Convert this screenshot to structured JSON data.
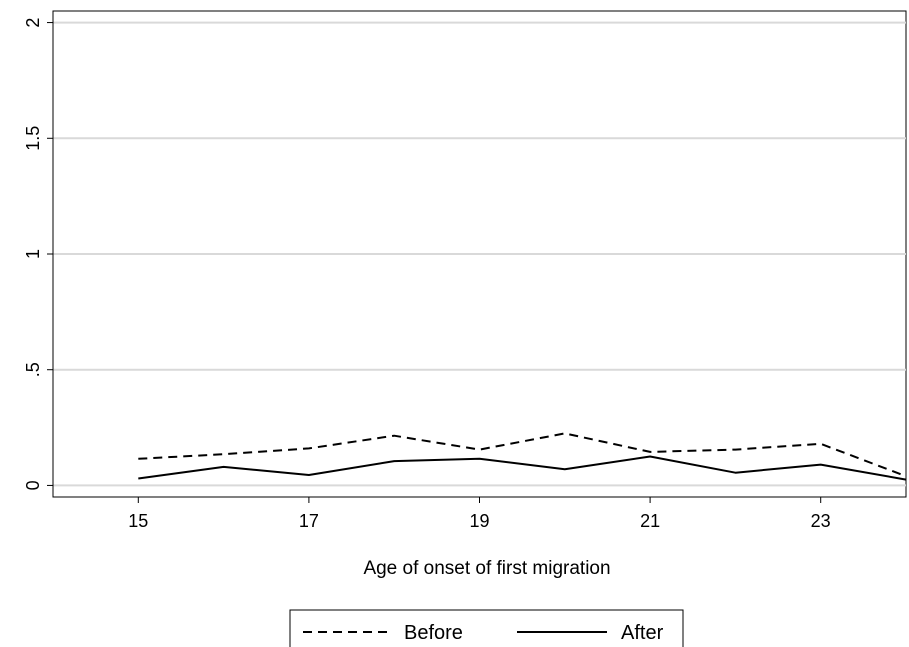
{
  "chart_data": {
    "type": "line",
    "title": "",
    "xlabel": "Age of onset of first migration",
    "ylabel": "",
    "x": [
      15,
      16,
      17,
      18,
      19,
      20,
      21,
      22,
      23,
      24
    ],
    "xlim": [
      14,
      24
    ],
    "ylim": [
      -0.05,
      2.05
    ],
    "xticks": [
      15,
      17,
      19,
      21,
      23
    ],
    "xtick_labels": [
      "15",
      "17",
      "19",
      "21",
      "23"
    ],
    "yticks": [
      0,
      0.5,
      1,
      1.5,
      2
    ],
    "ytick_labels": [
      "0",
      ".5",
      "1",
      "1.5",
      "2"
    ],
    "grid": "horizontal",
    "legend_position": "bottom",
    "series": [
      {
        "name": "Before",
        "style": "dashed",
        "color": "#000000",
        "values": [
          0.115,
          0.135,
          0.16,
          0.215,
          0.155,
          0.225,
          0.145,
          0.155,
          0.18,
          0.04
        ]
      },
      {
        "name": "After",
        "style": "solid",
        "color": "#000000",
        "values": [
          0.03,
          0.08,
          0.045,
          0.105,
          0.115,
          0.07,
          0.125,
          0.055,
          0.09,
          0.025
        ]
      }
    ]
  }
}
